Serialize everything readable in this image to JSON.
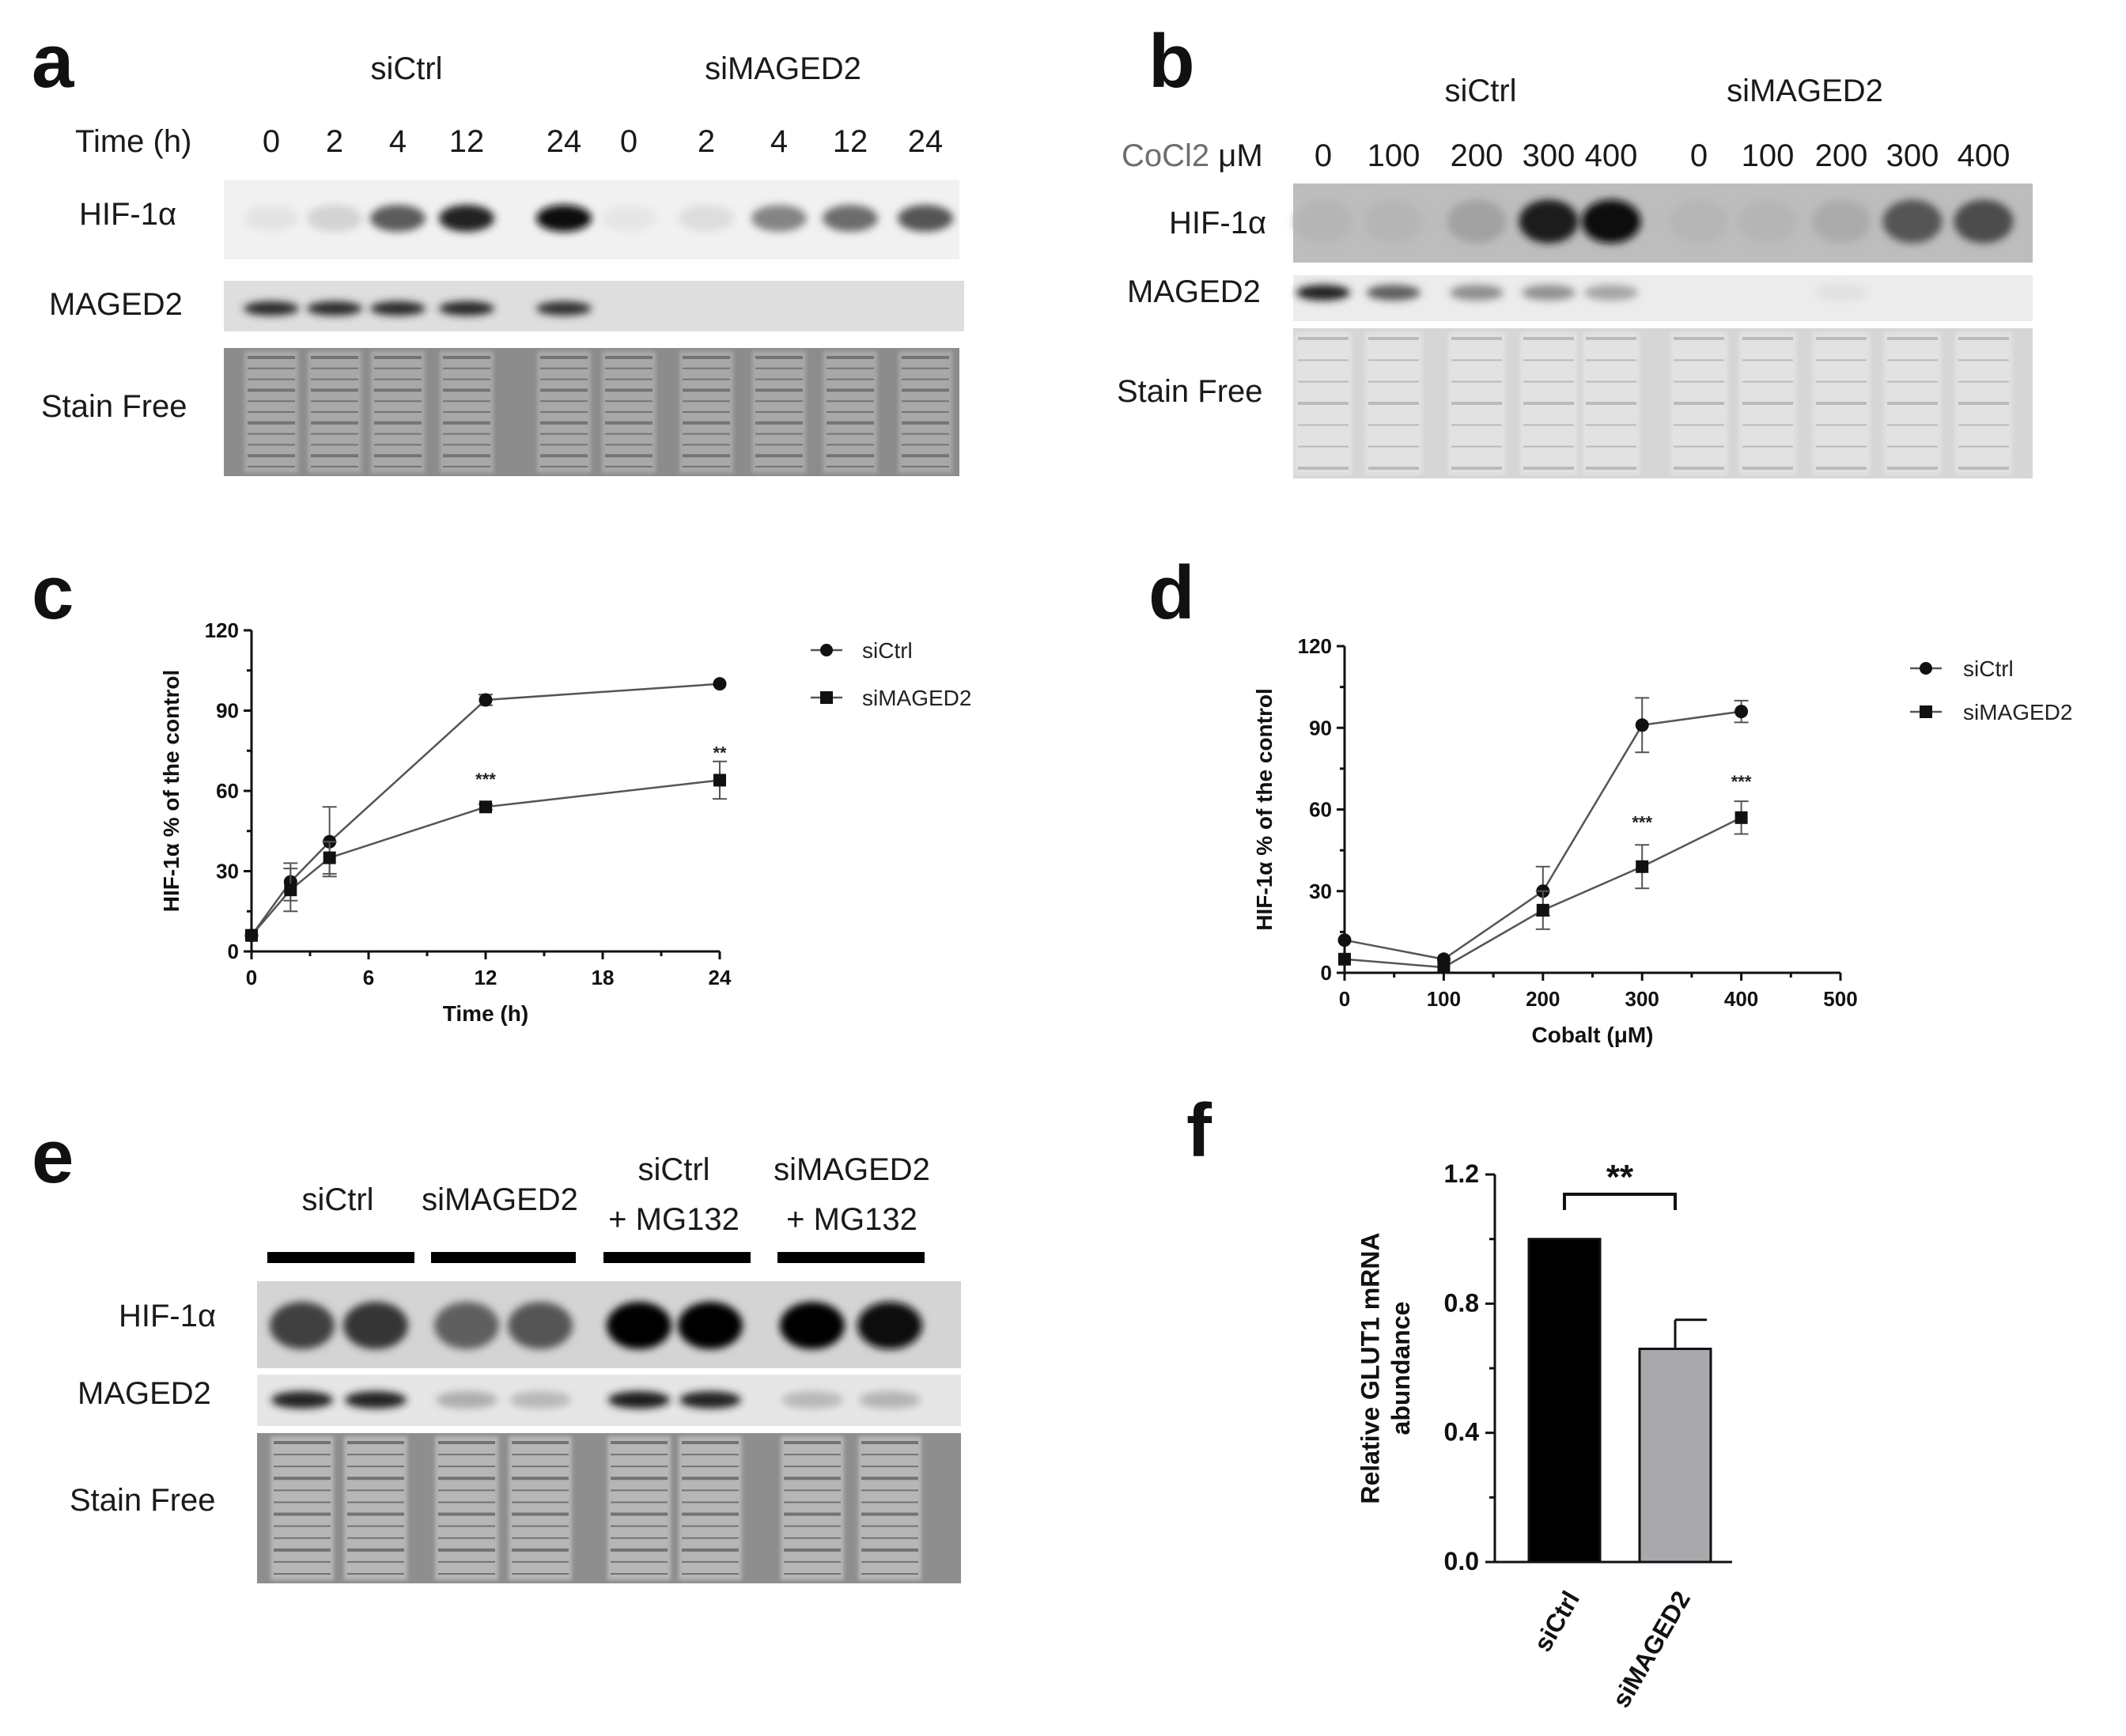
{
  "panels": {
    "a": {
      "letter": "a",
      "groups": [
        "siCtrl",
        "siMAGED2"
      ],
      "row_header": "Time (h)",
      "lanes": [
        "0",
        "2",
        "4",
        "12",
        "24",
        "0",
        "2",
        "4",
        "12",
        "24"
      ],
      "rows": [
        "HIF-1α",
        "MAGED2",
        "Stain Free"
      ],
      "hif_intensity": [
        0.05,
        0.12,
        0.62,
        0.85,
        0.95,
        0.04,
        0.08,
        0.45,
        0.55,
        0.65
      ],
      "maged2_intensity": [
        0.8,
        0.8,
        0.8,
        0.82,
        0.78,
        0,
        0,
        0,
        0,
        0
      ]
    },
    "b": {
      "letter": "b",
      "groups": [
        "siCtrl",
        "siMAGED2"
      ],
      "row_header_prefix": "CoCl2",
      "row_header_unit": " μM",
      "lanes": [
        "0",
        "100",
        "200",
        "300",
        "400",
        "0",
        "100",
        "200",
        "300",
        "400"
      ],
      "rows": [
        "HIF-1α",
        "MAGED2",
        "Stain Free"
      ],
      "hif_intensity": [
        0.05,
        0.05,
        0.15,
        0.85,
        0.92,
        0.04,
        0.05,
        0.1,
        0.55,
        0.6
      ],
      "maged2_intensity": [
        0.85,
        0.6,
        0.4,
        0.38,
        0.3,
        0,
        0,
        0.05,
        0,
        0
      ]
    },
    "c": {
      "letter": "c",
      "legend": [
        "siCtrl",
        "siMAGED2"
      ],
      "significance": [
        "***",
        "**"
      ]
    },
    "d": {
      "letter": "d",
      "legend": [
        "siCtrl",
        "siMAGED2"
      ],
      "significance": [
        "***",
        "***"
      ]
    },
    "e": {
      "letter": "e",
      "groups": [
        {
          "line1": "siCtrl",
          "line2": ""
        },
        {
          "line1": "siMAGED2",
          "line2": ""
        },
        {
          "line1": "siCtrl",
          "line2": "+ MG132"
        },
        {
          "line1": "siMAGED2",
          "line2": "+ MG132"
        }
      ],
      "rows": [
        "HIF-1α",
        "MAGED2",
        "Stain Free"
      ],
      "hif_intensity": [
        0.7,
        0.75,
        0.55,
        0.6,
        0.98,
        0.98,
        0.97,
        0.95
      ],
      "maged2_intensity": [
        0.85,
        0.85,
        0.25,
        0.2,
        0.88,
        0.85,
        0.2,
        0.22
      ]
    },
    "f": {
      "letter": "f",
      "significance": "**"
    }
  },
  "chart_data": [
    {
      "panel": "c",
      "type": "line",
      "xlabel": "Time (h)",
      "ylabel": "HIF-1α % of the control",
      "xlim": [
        0,
        24
      ],
      "ylim": [
        0,
        120
      ],
      "xticks": [
        0,
        6,
        12,
        18,
        24
      ],
      "yticks": [
        0,
        30,
        60,
        90,
        120
      ],
      "x": [
        0,
        2,
        4,
        12,
        24
      ],
      "series": [
        {
          "name": "siCtrl",
          "marker": "circle",
          "values": [
            6,
            26,
            41,
            94,
            100
          ],
          "errors": [
            0,
            7,
            13,
            2,
            0
          ]
        },
        {
          "name": "siMAGED2",
          "marker": "square",
          "values": [
            6,
            23,
            35,
            54,
            64
          ],
          "errors": [
            0,
            8,
            6,
            1,
            7
          ]
        }
      ],
      "annotations": [
        {
          "x": 12,
          "y": 62,
          "text": "***"
        },
        {
          "x": 24,
          "y": 72,
          "text": "**"
        }
      ],
      "legend_position": "top-right"
    },
    {
      "panel": "d",
      "type": "line",
      "xlabel": "Cobalt (μM)",
      "ylabel": "HIF-1α % of the control",
      "xlim": [
        0,
        500
      ],
      "ylim": [
        0,
        120
      ],
      "xticks": [
        0,
        100,
        200,
        300,
        400,
        500
      ],
      "yticks": [
        0,
        30,
        60,
        90,
        120
      ],
      "x": [
        0,
        100,
        200,
        300,
        400
      ],
      "series": [
        {
          "name": "siCtrl",
          "marker": "circle",
          "values": [
            12,
            5,
            30,
            91,
            96
          ],
          "errors": [
            0,
            0,
            9,
            10,
            4
          ]
        },
        {
          "name": "siMAGED2",
          "marker": "square",
          "values": [
            5,
            2,
            23,
            39,
            57
          ],
          "errors": [
            0,
            0,
            7,
            8,
            6
          ]
        }
      ],
      "annotations": [
        {
          "x": 300,
          "y": 53,
          "text": "***"
        },
        {
          "x": 400,
          "y": 68,
          "text": "***"
        }
      ],
      "legend_position": "top-right"
    },
    {
      "panel": "f",
      "type": "bar",
      "categories": [
        "siCtrl",
        "siMAGED2"
      ],
      "values": [
        1.0,
        0.66
      ],
      "errors": [
        0,
        0.09
      ],
      "colors": [
        "#000000",
        "#a9a9ad"
      ],
      "ylabel": "Relative GLUT1 mRNA abundance",
      "ylim": [
        0,
        1.2
      ],
      "yticks": [
        "0.0",
        "0.4",
        "0.8",
        "1.2"
      ]
    }
  ]
}
